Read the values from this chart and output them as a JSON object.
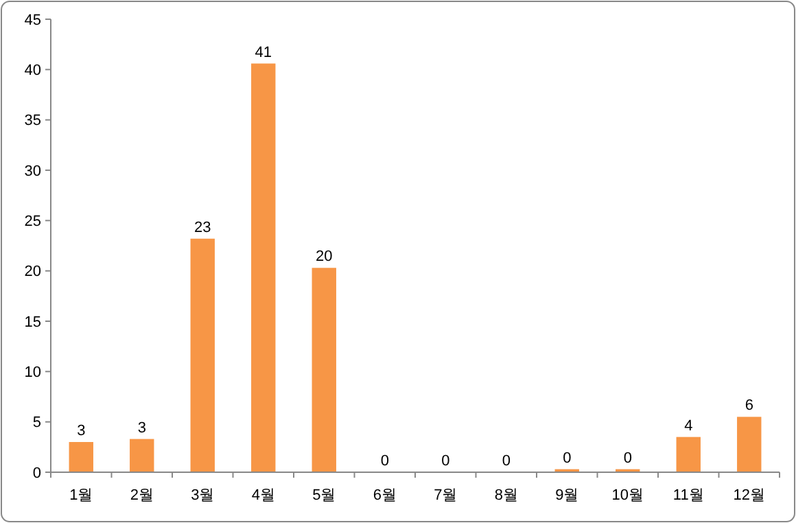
{
  "chart_data": {
    "type": "bar",
    "categories": [
      "1월",
      "2월",
      "3월",
      "4월",
      "5월",
      "6월",
      "7월",
      "8월",
      "9월",
      "10월",
      "11월",
      "12월"
    ],
    "values": [
      3.0,
      3.3,
      23.2,
      40.6,
      20.3,
      0,
      0,
      0,
      0.3,
      0.3,
      3.5,
      5.5
    ],
    "value_labels": [
      "3",
      "3",
      "23",
      "41",
      "20",
      "0",
      "0",
      "0",
      "0",
      "0",
      "4",
      "6"
    ],
    "color": "#f79646",
    "ylim": [
      0,
      45
    ],
    "yticks": [
      0,
      5,
      10,
      15,
      20,
      25,
      30,
      35,
      40,
      45
    ],
    "grid": false
  }
}
